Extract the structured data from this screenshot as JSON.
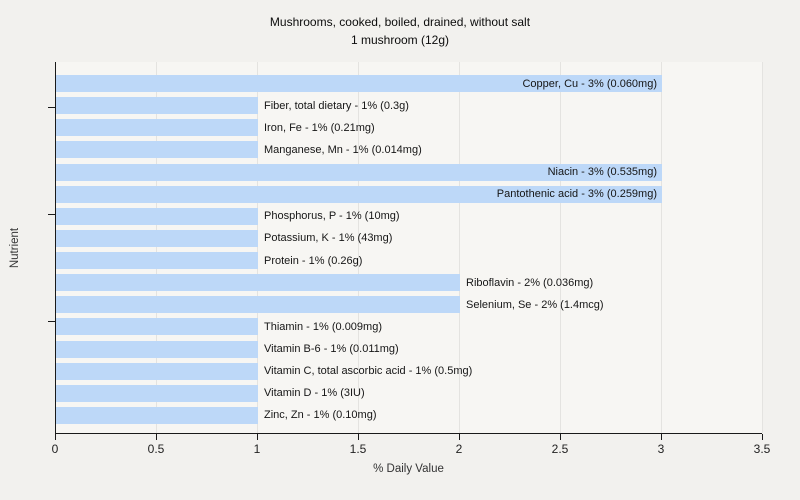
{
  "chart_data": {
    "type": "bar",
    "orientation": "horizontal",
    "title": "Mushrooms, cooked, boiled, drained, without salt",
    "subtitle": "1 mushroom (12g)",
    "xlabel": "% Daily Value",
    "ylabel": "Nutrient",
    "xlim": [
      0,
      3.5
    ],
    "xticks": [
      "0",
      "0.5",
      "1",
      "1.5",
      "2",
      "2.5",
      "3",
      "3.5"
    ],
    "grid": "vertical gridlines at 0.5 intervals",
    "legend": "none",
    "bars": [
      {
        "nutrient": "Copper, Cu",
        "percent_daily_value": 3,
        "amount": "0.060mg",
        "label": "Copper, Cu - 3% (0.060mg)",
        "value": 3,
        "label_inside": true
      },
      {
        "nutrient": "Fiber, total dietary",
        "percent_daily_value": 1,
        "amount": "0.3g",
        "label": "Fiber, total dietary - 1% (0.3g)",
        "value": 1,
        "label_inside": false
      },
      {
        "nutrient": "Iron, Fe",
        "percent_daily_value": 1,
        "amount": "0.21mg",
        "label": "Iron, Fe - 1% (0.21mg)",
        "value": 1,
        "label_inside": false
      },
      {
        "nutrient": "Manganese, Mn",
        "percent_daily_value": 1,
        "amount": "0.014mg",
        "label": "Manganese, Mn - 1% (0.014mg)",
        "value": 1,
        "label_inside": false
      },
      {
        "nutrient": "Niacin",
        "percent_daily_value": 3,
        "amount": "0.535mg",
        "label": "Niacin - 3% (0.535mg)",
        "value": 3,
        "label_inside": true
      },
      {
        "nutrient": "Pantothenic acid",
        "percent_daily_value": 3,
        "amount": "0.259mg",
        "label": "Pantothenic acid - 3% (0.259mg)",
        "value": 3,
        "label_inside": true
      },
      {
        "nutrient": "Phosphorus, P",
        "percent_daily_value": 1,
        "amount": "10mg",
        "label": "Phosphorus, P - 1% (10mg)",
        "value": 1,
        "label_inside": false
      },
      {
        "nutrient": "Potassium, K",
        "percent_daily_value": 1,
        "amount": "43mg",
        "label": "Potassium, K - 1% (43mg)",
        "value": 1,
        "label_inside": false
      },
      {
        "nutrient": "Protein",
        "percent_daily_value": 1,
        "amount": "0.26g",
        "label": "Protein - 1% (0.26g)",
        "value": 1,
        "label_inside": false
      },
      {
        "nutrient": "Riboflavin",
        "percent_daily_value": 2,
        "amount": "0.036mg",
        "label": "Riboflavin - 2% (0.036mg)",
        "value": 2,
        "label_inside": false
      },
      {
        "nutrient": "Selenium, Se",
        "percent_daily_value": 2,
        "amount": "1.4mcg",
        "label": "Selenium, Se - 2% (1.4mcg)",
        "value": 2,
        "label_inside": false
      },
      {
        "nutrient": "Thiamin",
        "percent_daily_value": 1,
        "amount": "0.009mg",
        "label": "Thiamin - 1% (0.009mg)",
        "value": 1,
        "label_inside": false
      },
      {
        "nutrient": "Vitamin B-6",
        "percent_daily_value": 1,
        "amount": "0.011mg",
        "label": "Vitamin B-6 - 1% (0.011mg)",
        "value": 1,
        "label_inside": false
      },
      {
        "nutrient": "Vitamin C, total ascorbic acid",
        "percent_daily_value": 1,
        "amount": "0.5mg",
        "label": "Vitamin C, total ascorbic acid - 1% (0.5mg)",
        "value": 1,
        "label_inside": false
      },
      {
        "nutrient": "Vitamin D",
        "percent_daily_value": 1,
        "amount": "3IU",
        "label": "Vitamin D - 1% (3IU)",
        "value": 1,
        "label_inside": false
      },
      {
        "nutrient": "Zinc, Zn",
        "percent_daily_value": 1,
        "amount": "0.10mg",
        "label": "Zinc, Zn - 1% (0.10mg)",
        "value": 1,
        "label_inside": false
      }
    ],
    "colors": {
      "bar": "#bdd8f8",
      "plot_bg": "#f7f6f3",
      "page_bg": "#f2f1ee",
      "grid": "#e4e3e0",
      "axis": "#1a1a1a"
    }
  }
}
